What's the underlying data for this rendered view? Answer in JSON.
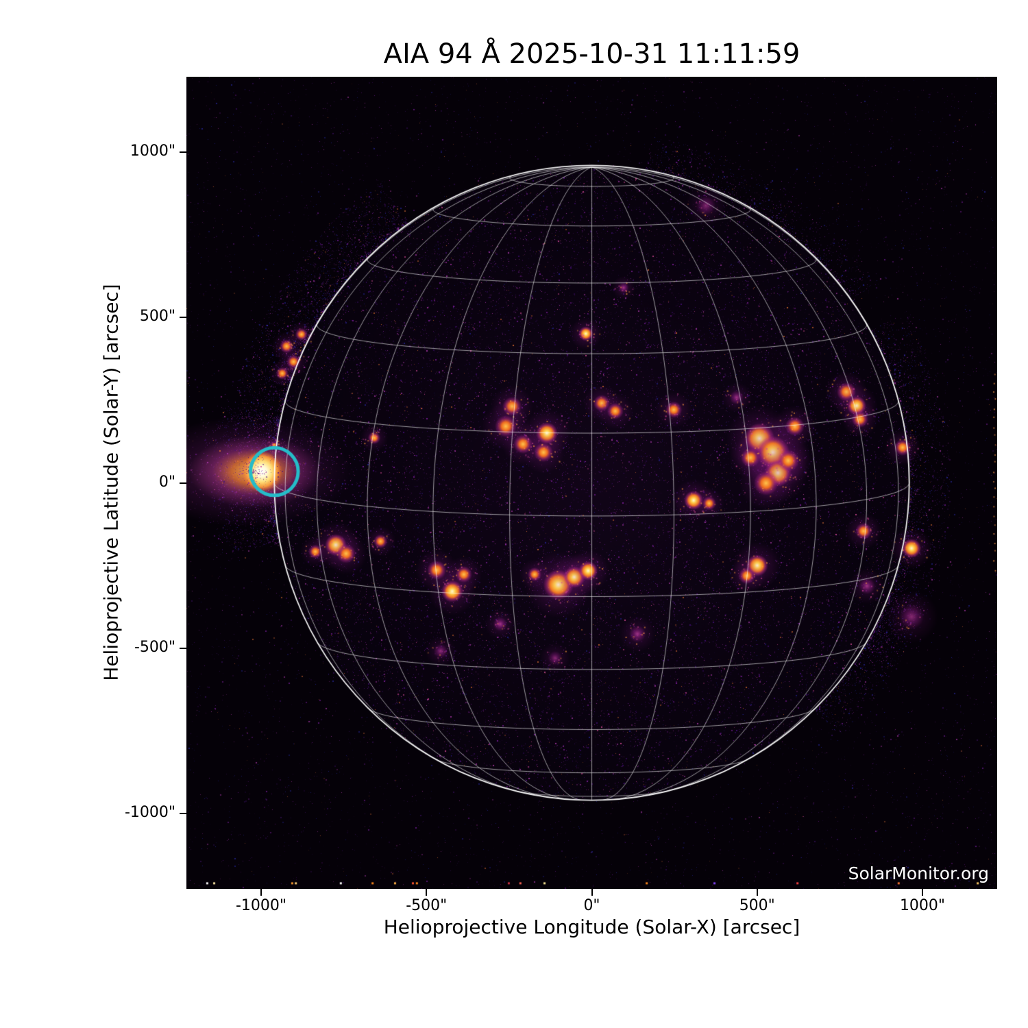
{
  "title": "AIA 94 Å 2025-10-31 11:11:59",
  "watermark": "SolarMonitor.org",
  "axes": {
    "xlabel": "Helioprojective Longitude (Solar-X) [arcsec]",
    "ylabel": "Helioprojective Latitude (Solar-Y) [arcsec]",
    "xticks": [
      {
        "value": -1000,
        "label": "-1000\""
      },
      {
        "value": -500,
        "label": "-500\""
      },
      {
        "value": 0,
        "label": "0\""
      },
      {
        "value": 500,
        "label": "500\""
      },
      {
        "value": 1000,
        "label": "1000\""
      }
    ],
    "yticks": [
      {
        "value": 1000,
        "label": "1000\""
      },
      {
        "value": 500,
        "label": "500\""
      },
      {
        "value": 0,
        "label": "0\""
      },
      {
        "value": -500,
        "label": "-500\""
      },
      {
        "value": -1000,
        "label": "-1000\""
      }
    ],
    "range_arcsec": [
      -1226,
      1226
    ]
  },
  "colors": {
    "annotation_circle": "#25bcc8",
    "grid": "rgba(255,255,255,0.60)",
    "limb": "rgba(255,255,255,0.95)",
    "image_background": "#050108",
    "page_background": "#ffffff"
  },
  "chart_data": {
    "type": "heatmap",
    "description": "SDO/AIA 94 Angstrom EUV solar disk image, inferno-style colormap, heliographic grid every 15 deg, B0 tilt ~6 deg, solar radius ~960 arcsec",
    "instrument": "AIA",
    "wavelength": "94 Å",
    "datetime": "2025-10-31 11:11:59",
    "solar_radius_arcsec": 960,
    "grid_spacing_deg": 15,
    "b0_deg": 6,
    "annotation_circle": {
      "x": -960,
      "y": 34,
      "radius_arcsec": 72
    },
    "flare": {
      "x": -998,
      "y": 34,
      "note": "bright saturated flare at east limb with off-limb fan"
    },
    "features": [
      {
        "x": -18,
        "y": 451,
        "r": 22,
        "i": 1.5
      },
      {
        "x": 96,
        "y": 590,
        "r": 16,
        "i": 0.9
      },
      {
        "x": -241,
        "y": 231,
        "r": 29,
        "i": 1.2
      },
      {
        "x": -260,
        "y": 171,
        "r": 33,
        "i": 1.3
      },
      {
        "x": -208,
        "y": 117,
        "r": 29,
        "i": 1.2
      },
      {
        "x": -136,
        "y": 150,
        "r": 33,
        "i": 1.6
      },
      {
        "x": -146,
        "y": 92,
        "r": 29,
        "i": 1.2
      },
      {
        "x": -658,
        "y": 136,
        "r": 19,
        "i": 1.0
      },
      {
        "x": 30,
        "y": 241,
        "r": 25,
        "i": 1.1
      },
      {
        "x": 71,
        "y": 217,
        "r": 25,
        "i": 1.0
      },
      {
        "x": 248,
        "y": 221,
        "r": 25,
        "i": 1.1
      },
      {
        "x": 438,
        "y": 258,
        "r": 21,
        "i": 0.8
      },
      {
        "x": 507,
        "y": 134,
        "r": 46,
        "i": 1.7
      },
      {
        "x": 548,
        "y": 92,
        "r": 50,
        "i": 1.8
      },
      {
        "x": 563,
        "y": 30,
        "r": 41,
        "i": 1.7
      },
      {
        "x": 527,
        "y": -1,
        "r": 37,
        "i": 1.4
      },
      {
        "x": 594,
        "y": 67,
        "r": 33,
        "i": 1.4
      },
      {
        "x": 480,
        "y": 76,
        "r": 29,
        "i": 1.2
      },
      {
        "x": 614,
        "y": 171,
        "r": 29,
        "i": 1.3
      },
      {
        "x": 770,
        "y": 275,
        "r": 29,
        "i": 1.4
      },
      {
        "x": 801,
        "y": 233,
        "r": 29,
        "i": 1.5
      },
      {
        "x": 811,
        "y": 192,
        "r": 25,
        "i": 1.3
      },
      {
        "x": 308,
        "y": -53,
        "r": 29,
        "i": 1.5
      },
      {
        "x": 355,
        "y": -62,
        "r": 21,
        "i": 1.1
      },
      {
        "x": -101,
        "y": -308,
        "r": 46,
        "i": 1.8
      },
      {
        "x": -53,
        "y": -285,
        "r": 33,
        "i": 1.5
      },
      {
        "x": -11,
        "y": -266,
        "r": 29,
        "i": 1.6
      },
      {
        "x": -173,
        "y": -277,
        "r": 21,
        "i": 1.0
      },
      {
        "x": -774,
        "y": -188,
        "r": 33,
        "i": 1.5
      },
      {
        "x": -743,
        "y": -214,
        "r": 29,
        "i": 1.3
      },
      {
        "x": -836,
        "y": -208,
        "r": 21,
        "i": 1.0
      },
      {
        "x": -639,
        "y": -177,
        "r": 21,
        "i": 1.2
      },
      {
        "x": -469,
        "y": -264,
        "r": 29,
        "i": 1.4
      },
      {
        "x": -422,
        "y": -328,
        "r": 33,
        "i": 1.6
      },
      {
        "x": -387,
        "y": -277,
        "r": 25,
        "i": 1.3
      },
      {
        "x": 500,
        "y": -250,
        "r": 33,
        "i": 1.5
      },
      {
        "x": 469,
        "y": -281,
        "r": 25,
        "i": 1.1
      },
      {
        "x": 822,
        "y": -146,
        "r": 25,
        "i": 1.4
      },
      {
        "x": 832,
        "y": -312,
        "r": 25,
        "i": 0.8
      },
      {
        "x": 940,
        "y": 107,
        "r": 25,
        "i": 1.3
      },
      {
        "x": 967,
        "y": -198,
        "r": 29,
        "i": 1.5
      },
      {
        "x": 138,
        "y": -457,
        "r": 25,
        "i": 0.8
      },
      {
        "x": -111,
        "y": -530,
        "r": 21,
        "i": 0.5
      },
      {
        "x": -277,
        "y": -427,
        "r": 21,
        "i": 0.9
      },
      {
        "x": -457,
        "y": -509,
        "r": 21,
        "i": 0.6
      },
      {
        "x": 967,
        "y": -405,
        "r": 37,
        "i": 0.5
      },
      {
        "x": 345,
        "y": 838,
        "r": 29,
        "i": 0.4
      },
      {
        "x": -923,
        "y": 413,
        "r": 21,
        "i": 1.2
      },
      {
        "x": -902,
        "y": 366,
        "r": 21,
        "i": 1.1
      },
      {
        "x": -878,
        "y": 449,
        "r": 19,
        "i": 1.0
      },
      {
        "x": -936,
        "y": 331,
        "r": 19,
        "i": 1.0
      }
    ],
    "bottom_edge_dots": {
      "y": -1208,
      "dots": [
        {
          "x": -1166,
          "color": "#ffffff"
        },
        {
          "x": -1145,
          "color": "#ffe9a8"
        },
        {
          "x": -909,
          "color": "#ff9d2e"
        },
        {
          "x": -898,
          "color": "#ffd27a"
        },
        {
          "x": -762,
          "color": "#ffffff"
        },
        {
          "x": -666,
          "color": "#ff8a1e"
        },
        {
          "x": -598,
          "color": "#ffb347"
        },
        {
          "x": -544,
          "color": "#ff5533"
        },
        {
          "x": -532,
          "color": "#ff8a1e"
        },
        {
          "x": -254,
          "color": "#cc3344"
        },
        {
          "x": -219,
          "color": "#ff6655"
        },
        {
          "x": -146,
          "color": "#ffee99"
        },
        {
          "x": 163,
          "color": "#ff8a1e"
        },
        {
          "x": 368,
          "color": "#8844ff"
        },
        {
          "x": 619,
          "color": "#ff4444"
        },
        {
          "x": 925,
          "color": "#ff7733"
        },
        {
          "x": 1164,
          "color": "#ffcc66"
        }
      ]
    }
  }
}
